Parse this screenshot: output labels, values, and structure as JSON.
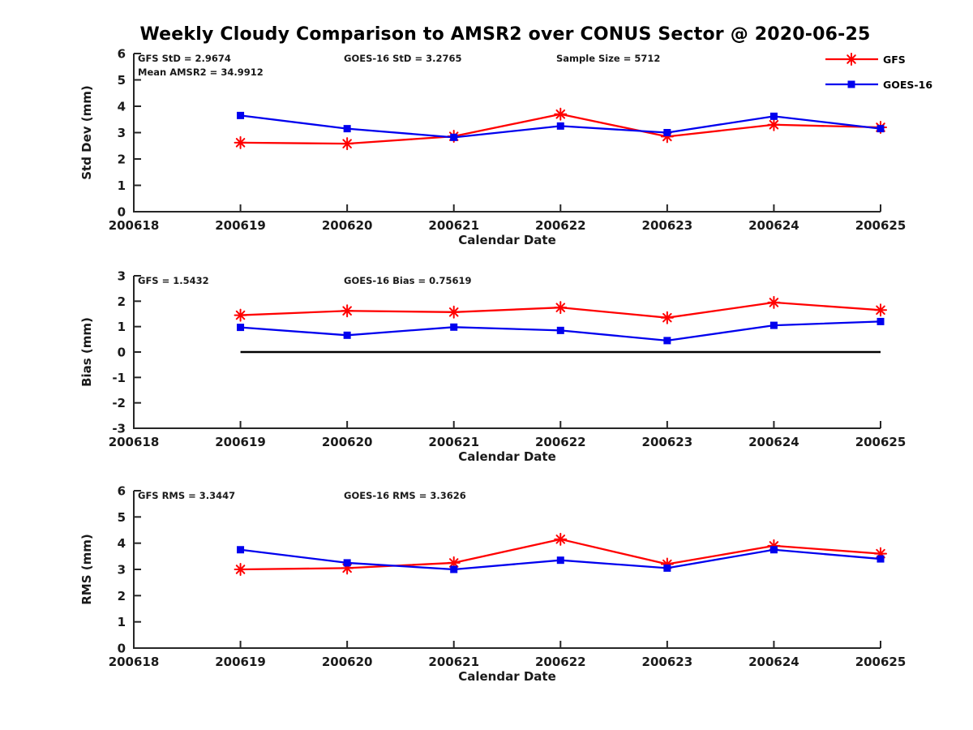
{
  "title": "Weekly Cloudy Comparison to AMSR2 over CONUS Sector @ 2020-06-25",
  "colors": {
    "gfs": "#ff0000",
    "goes16": "#0000ee",
    "axis": "#262626",
    "text": "#1a1a1a",
    "zero_line": "#000000"
  },
  "legend": {
    "position": "top-right",
    "entries": [
      {
        "label": "GFS",
        "series": "gfs",
        "marker": "asterisk"
      },
      {
        "label": "GOES-16",
        "series": "goes16",
        "marker": "square"
      }
    ]
  },
  "chart_data": [
    {
      "type": "line",
      "name": "stddev",
      "ylabel": "Std Dev (mm)",
      "xlabel": "Calendar Date",
      "ylim": [
        0,
        6
      ],
      "yticks": [
        0,
        1,
        2,
        3,
        4,
        5,
        6
      ],
      "xticklabels": [
        "200618",
        "200619",
        "200620",
        "200621",
        "200622",
        "200623",
        "200624",
        "200625"
      ],
      "x": [
        "200619",
        "200620",
        "200621",
        "200622",
        "200623",
        "200624",
        "200625"
      ],
      "series": [
        {
          "name": "GFS",
          "color_key": "gfs",
          "marker": "asterisk",
          "values": [
            2.62,
            2.58,
            2.86,
            3.7,
            2.85,
            3.3,
            3.2
          ]
        },
        {
          "name": "GOES-16",
          "color_key": "goes16",
          "marker": "square",
          "values": [
            3.65,
            3.15,
            2.82,
            3.25,
            3.0,
            3.62,
            3.15
          ]
        }
      ],
      "annotations": [
        {
          "text": "GFS StD = 2.9674",
          "col": 0,
          "row": 0
        },
        {
          "text": "Mean AMSR2 = 34.9912",
          "col": 0,
          "row": 1
        },
        {
          "text": "GOES-16 StD = 3.2765",
          "col": 1,
          "row": 0
        },
        {
          "text": "Sample Size = 5712",
          "col": 2,
          "row": 0
        }
      ],
      "zero_line": false,
      "show_legend": true
    },
    {
      "type": "line",
      "name": "bias",
      "ylabel": "Bias (mm)",
      "xlabel": "Calendar Date",
      "ylim": [
        -3,
        3
      ],
      "yticks": [
        -3,
        -2,
        -1,
        0,
        1,
        2,
        3
      ],
      "xticklabels": [
        "200618",
        "200619",
        "200620",
        "200621",
        "200622",
        "200623",
        "200624",
        "200625"
      ],
      "x": [
        "200619",
        "200620",
        "200621",
        "200622",
        "200623",
        "200624",
        "200625"
      ],
      "series": [
        {
          "name": "GFS",
          "color_key": "gfs",
          "marker": "asterisk",
          "values": [
            1.45,
            1.62,
            1.57,
            1.75,
            1.35,
            1.95,
            1.65
          ]
        },
        {
          "name": "GOES-16",
          "color_key": "goes16",
          "marker": "square",
          "values": [
            0.97,
            0.66,
            0.98,
            0.85,
            0.45,
            1.05,
            1.2
          ]
        }
      ],
      "annotations": [
        {
          "text": "GFS = 1.5432",
          "col": 0,
          "row": 0
        },
        {
          "text": "GOES-16 Bias  = 0.75619",
          "col": 1,
          "row": 0
        }
      ],
      "zero_line": true,
      "show_legend": false
    },
    {
      "type": "line",
      "name": "rms",
      "ylabel": "RMS (mm)",
      "xlabel": "Calendar Date",
      "ylim": [
        0,
        6
      ],
      "yticks": [
        0,
        1,
        2,
        3,
        4,
        5,
        6
      ],
      "xticklabels": [
        "200618",
        "200619",
        "200620",
        "200621",
        "200622",
        "200623",
        "200624",
        "200625"
      ],
      "x": [
        "200619",
        "200620",
        "200621",
        "200622",
        "200623",
        "200624",
        "200625"
      ],
      "series": [
        {
          "name": "GFS",
          "color_key": "gfs",
          "marker": "asterisk",
          "values": [
            3.0,
            3.05,
            3.25,
            4.15,
            3.2,
            3.9,
            3.6
          ]
        },
        {
          "name": "GOES-16",
          "color_key": "goes16",
          "marker": "square",
          "values": [
            3.75,
            3.25,
            3.0,
            3.35,
            3.05,
            3.75,
            3.4
          ]
        }
      ],
      "annotations": [
        {
          "text": "GFS RMS = 3.3447",
          "col": 0,
          "row": 0
        },
        {
          "text": "GOES-16 RMS = 3.3626",
          "col": 1,
          "row": 0
        }
      ],
      "zero_line": false,
      "show_legend": false
    }
  ]
}
